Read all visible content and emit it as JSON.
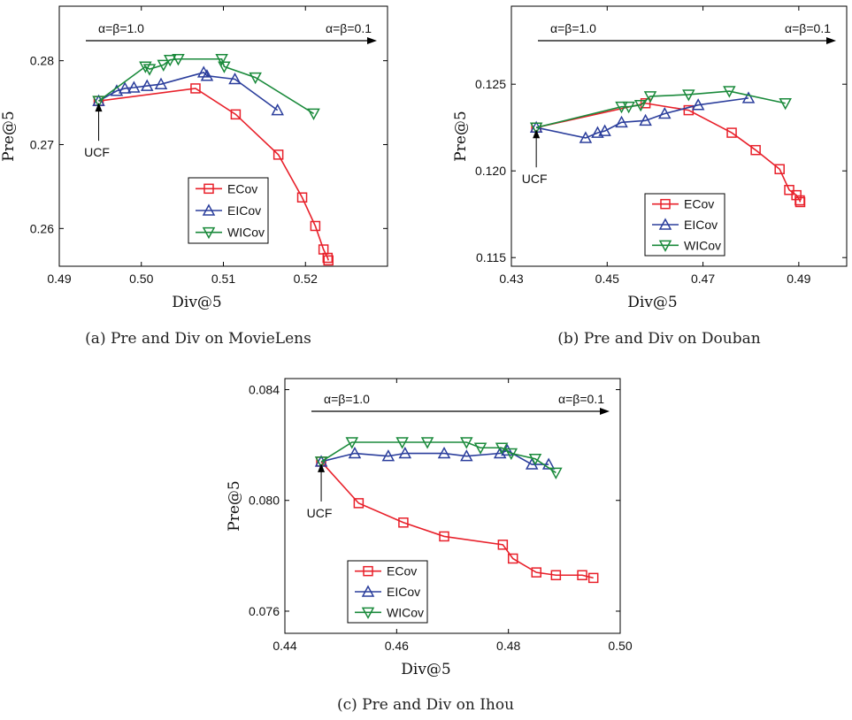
{
  "chart_data": [
    {
      "type": "line",
      "caption": "(a) Pre and Div on MovieLens",
      "xlabel": "Div@5",
      "ylabel": "Pre@5",
      "xlim": [
        0.49,
        0.53
      ],
      "ylim": [
        0.2555,
        0.2865
      ],
      "xticks": [
        0.49,
        0.5,
        0.51,
        0.52
      ],
      "xtick_labels": [
        "0.49",
        "0.50",
        "0.51",
        "0.52"
      ],
      "yticks": [
        0.26,
        0.27,
        0.28
      ],
      "ytick_labels": [
        "0.26",
        "0.27",
        "0.28"
      ],
      "annotations": {
        "arrow_left": "α=β=1.0",
        "arrow_right": "α=β=0.1",
        "ucf_label": "UCF",
        "ucf_point": [
          0.4948,
          0.2752
        ]
      },
      "legend": {
        "position": "lower-right"
      },
      "series": [
        {
          "name": "ECov",
          "color": "#e8202a",
          "marker": "square",
          "x": [
            0.4948,
            0.5066,
            0.5115,
            0.5167,
            0.5196,
            0.5212,
            0.5222,
            0.5227,
            0.5228
          ],
          "y": [
            0.2752,
            0.2767,
            0.2736,
            0.2688,
            0.2637,
            0.2603,
            0.2575,
            0.2565,
            0.2562
          ]
        },
        {
          "name": "EICov",
          "color": "#2b3e9c",
          "marker": "triangle-up",
          "x": [
            0.4948,
            0.497,
            0.498,
            0.4991,
            0.5007,
            0.5024,
            0.5076,
            0.508,
            0.5114,
            0.5166
          ],
          "y": [
            0.2752,
            0.2764,
            0.2767,
            0.2768,
            0.277,
            0.2772,
            0.2786,
            0.2782,
            0.2778,
            0.2741
          ]
        },
        {
          "name": "WICov",
          "color": "#1a8a3b",
          "marker": "triangle-down",
          "x": [
            0.4948,
            0.5005,
            0.501,
            0.5027,
            0.5035,
            0.5045,
            0.5098,
            0.5101,
            0.5139,
            0.521
          ],
          "y": [
            0.2752,
            0.2793,
            0.279,
            0.2795,
            0.2801,
            0.2802,
            0.2802,
            0.2793,
            0.278,
            0.2737
          ]
        }
      ]
    },
    {
      "type": "line",
      "caption": "(b) Pre and Div on Douban",
      "xlabel": "Div@5",
      "ylabel": "Pre@5",
      "xlim": [
        0.43,
        0.5
      ],
      "ylim": [
        0.1145,
        0.1295
      ],
      "xticks": [
        0.43,
        0.45,
        0.47,
        0.49
      ],
      "xtick_labels": [
        "0.43",
        "0.45",
        "0.47",
        "0.49"
      ],
      "yticks": [
        0.115,
        0.12,
        0.125
      ],
      "ytick_labels": [
        "0.115",
        "0.120",
        "0.125"
      ],
      "annotations": {
        "arrow_left": "α=β=1.0",
        "arrow_right": "α=β=0.1",
        "ucf_label": "UCF",
        "ucf_point": [
          0.4352,
          0.1225
        ]
      },
      "legend": {
        "position": "lower-right"
      },
      "series": [
        {
          "name": "ECov",
          "color": "#e8202a",
          "marker": "square",
          "x": [
            0.4352,
            0.458,
            0.467,
            0.476,
            0.481,
            0.486,
            0.488,
            0.4895,
            0.4902,
            0.4903
          ],
          "y": [
            0.1225,
            0.1239,
            0.1235,
            0.1222,
            0.1212,
            0.1201,
            0.1189,
            0.1186,
            0.1183,
            0.1182
          ]
        },
        {
          "name": "EICov",
          "color": "#2b3e9c",
          "marker": "triangle-up",
          "x": [
            0.4352,
            0.4455,
            0.448,
            0.4495,
            0.453,
            0.458,
            0.462,
            0.469,
            0.4795
          ],
          "y": [
            0.1225,
            0.1219,
            0.1222,
            0.1223,
            0.1228,
            0.1229,
            0.1233,
            0.1238,
            0.1242
          ]
        },
        {
          "name": "WICov",
          "color": "#1a8a3b",
          "marker": "triangle-down",
          "x": [
            0.4352,
            0.453,
            0.4545,
            0.457,
            0.459,
            0.467,
            0.4755,
            0.4872
          ],
          "y": [
            0.1225,
            0.1237,
            0.1237,
            0.1238,
            0.1243,
            0.1244,
            0.1246,
            0.1239
          ]
        }
      ]
    },
    {
      "type": "line",
      "caption": "(c) Pre and Div on Ihou",
      "xlabel": "Div@5",
      "ylabel": "Pre@5",
      "xlim": [
        0.44,
        0.5
      ],
      "ylim": [
        0.0752,
        0.0844
      ],
      "xticks": [
        0.44,
        0.46,
        0.48,
        0.5
      ],
      "xtick_labels": [
        "0.44",
        "0.46",
        "0.48",
        "0.50"
      ],
      "yticks": [
        0.076,
        0.08,
        0.084
      ],
      "ytick_labels": [
        "0.076",
        "0.080",
        "0.084"
      ],
      "annotations": {
        "arrow_left": "α=β=1.0",
        "arrow_right": "α=β=0.1",
        "ucf_label": "UCF",
        "ucf_point": [
          0.4465,
          0.0814
        ]
      },
      "legend": {
        "position": "lower-left"
      },
      "series": [
        {
          "name": "ECov",
          "color": "#e8202a",
          "marker": "square",
          "x": [
            0.4465,
            0.4532,
            0.4612,
            0.4685,
            0.479,
            0.4808,
            0.485,
            0.4885,
            0.4932,
            0.4952
          ],
          "y": [
            0.0814,
            0.0799,
            0.0792,
            0.0787,
            0.0784,
            0.0779,
            0.0774,
            0.0773,
            0.0773,
            0.0772
          ]
        },
        {
          "name": "EICov",
          "color": "#2b3e9c",
          "marker": "triangle-up",
          "x": [
            0.4465,
            0.4525,
            0.4585,
            0.4615,
            0.4685,
            0.4725,
            0.4785,
            0.4798,
            0.4842,
            0.4872
          ],
          "y": [
            0.0814,
            0.0817,
            0.0816,
            0.0817,
            0.0817,
            0.0816,
            0.0817,
            0.0818,
            0.0813,
            0.0813
          ]
        },
        {
          "name": "WICov",
          "color": "#1a8a3b",
          "marker": "triangle-down",
          "x": [
            0.4465,
            0.452,
            0.461,
            0.4655,
            0.4725,
            0.475,
            0.4788,
            0.4805,
            0.4848,
            0.4885
          ],
          "y": [
            0.0814,
            0.0821,
            0.0821,
            0.0821,
            0.0821,
            0.0819,
            0.0819,
            0.0817,
            0.0815,
            0.081
          ]
        }
      ]
    }
  ]
}
